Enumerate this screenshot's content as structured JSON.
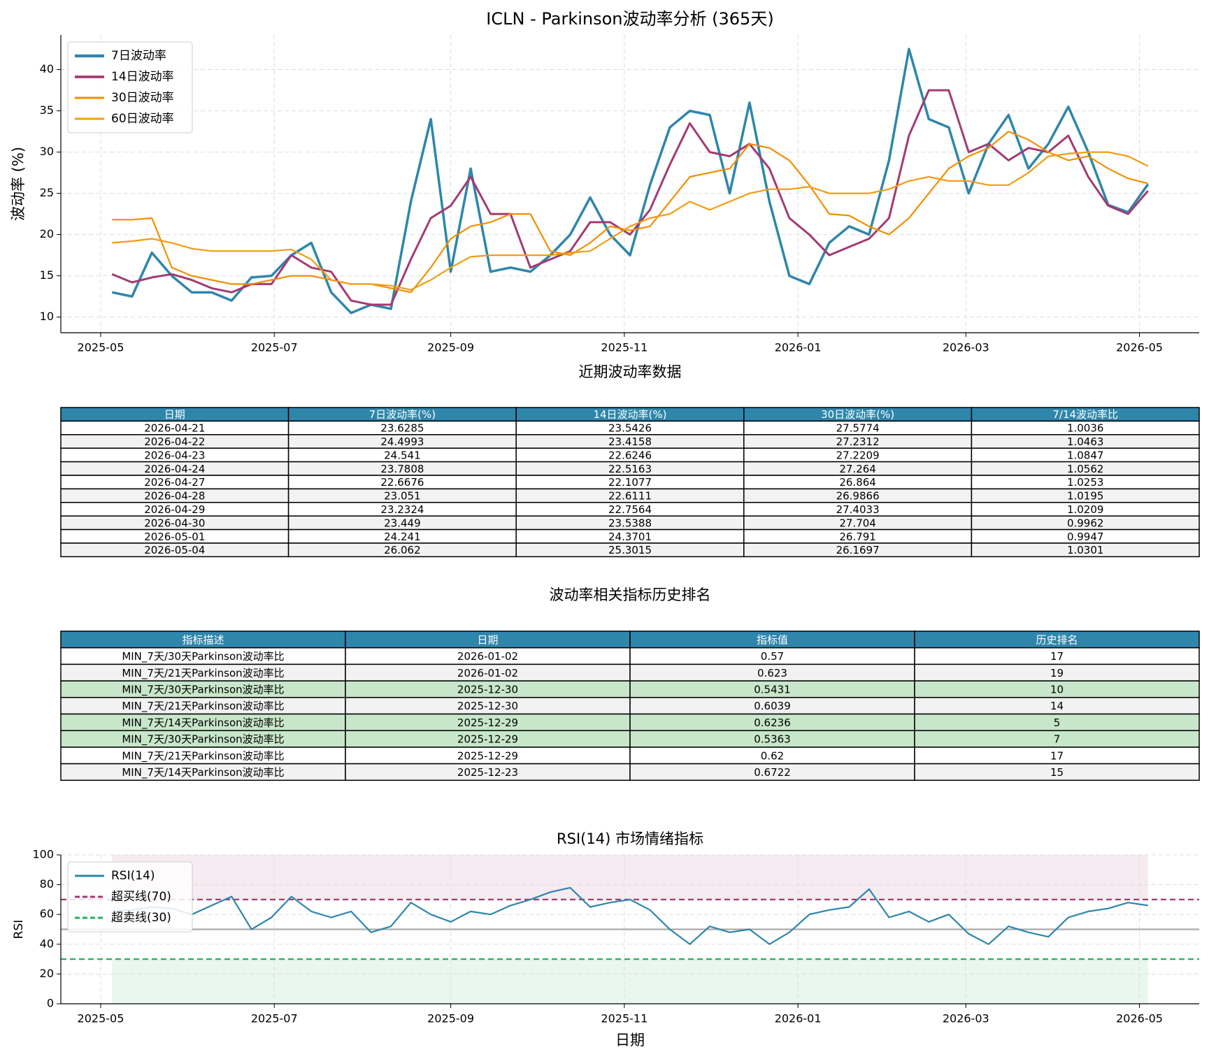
{
  "chart_data": [
    {
      "type": "line",
      "title": "ICLN - Parkinson波动率分析 (365天)",
      "ylabel": "波动率 (%)",
      "grid": true,
      "legend": "upper left",
      "x": [
        "2025-05-05",
        "2025-05-12",
        "2025-05-19",
        "2025-05-26",
        "2025-06-02",
        "2025-06-09",
        "2025-06-16",
        "2025-06-23",
        "2025-06-30",
        "2025-07-07",
        "2025-07-14",
        "2025-07-21",
        "2025-07-28",
        "2025-08-04",
        "2025-08-11",
        "2025-08-18",
        "2025-08-25",
        "2025-09-01",
        "2025-09-08",
        "2025-09-15",
        "2025-09-22",
        "2025-09-29",
        "2025-10-06",
        "2025-10-13",
        "2025-10-20",
        "2025-10-27",
        "2025-11-03",
        "2025-11-10",
        "2025-11-17",
        "2025-11-24",
        "2025-12-01",
        "2025-12-08",
        "2025-12-15",
        "2025-12-22",
        "2025-12-29",
        "2026-01-05",
        "2026-01-12",
        "2026-01-19",
        "2026-01-26",
        "2026-02-02",
        "2026-02-09",
        "2026-02-16",
        "2026-02-23",
        "2026-03-02",
        "2026-03-09",
        "2026-03-16",
        "2026-03-23",
        "2026-03-30",
        "2026-04-06",
        "2026-04-13",
        "2026-04-20",
        "2026-04-27",
        "2026-05-04"
      ],
      "series": [
        {
          "name": "7日波动率",
          "color": "#2e86ab",
          "linewidth": 3.5,
          "values": [
            13,
            12.5,
            17.8,
            15,
            13,
            13,
            12,
            14.8,
            15,
            17.5,
            19,
            13,
            10.5,
            11.5,
            11,
            24,
            34,
            15.5,
            28,
            15.5,
            16,
            15.5,
            17.5,
            20,
            24.5,
            20,
            17.5,
            26,
            33,
            35,
            34.5,
            25,
            36,
            24,
            15,
            14,
            19,
            21,
            20,
            29,
            42.5,
            34,
            33,
            25,
            31,
            34.5,
            28,
            31,
            35.5,
            30,
            23.6,
            22.7,
            26.1
          ]
        },
        {
          "name": "14日波动率",
          "color": "#a23b72",
          "linewidth": 3,
          "values": [
            15.2,
            14.2,
            14.8,
            15.2,
            14.5,
            13.5,
            13,
            14,
            14,
            17.5,
            16,
            15.5,
            12,
            11.5,
            11.5,
            17,
            22,
            23.5,
            27,
            22.5,
            22.5,
            16,
            17,
            18,
            21.5,
            21.5,
            20,
            23,
            28.5,
            33.5,
            30,
            29.5,
            31,
            28,
            22,
            20,
            17.5,
            18.5,
            19.5,
            22,
            32,
            37.5,
            37.5,
            30,
            31,
            29,
            30.5,
            30,
            32,
            27,
            23.5,
            22.5,
            25.3
          ]
        },
        {
          "name": "30日波动率",
          "color": "#f18f01",
          "linewidth": 2.2,
          "values": [
            21.8,
            21.8,
            22,
            16,
            15,
            14.5,
            14,
            14,
            14.5,
            15,
            15,
            14.5,
            14,
            14,
            13.5,
            13,
            16,
            19.5,
            21,
            21.5,
            22.5,
            22.5,
            18,
            17.5,
            19,
            21,
            20.5,
            21,
            24,
            27,
            27.5,
            28,
            31,
            30.5,
            29,
            26,
            22.5,
            22.3,
            21,
            20,
            22,
            25,
            28,
            29.5,
            30.5,
            32.5,
            31.5,
            30,
            29,
            29.5,
            28,
            26.8,
            26.2
          ]
        },
        {
          "name": "60日波动率",
          "color": "#f39c12",
          "linewidth": 2.2,
          "values": [
            19,
            19.2,
            19.5,
            19,
            18.3,
            18,
            18,
            18,
            18,
            18.2,
            17,
            14.5,
            14,
            14,
            13.8,
            13.3,
            14.5,
            16,
            17.3,
            17.5,
            17.5,
            17.5,
            17.5,
            17.8,
            18,
            19.5,
            21,
            22,
            22.5,
            24,
            23,
            24,
            25,
            25.5,
            25.5,
            25.8,
            25,
            25,
            25,
            25.5,
            26.5,
            27,
            26.5,
            26.5,
            26,
            26,
            27.5,
            29.5,
            29.8,
            30,
            30,
            29.5,
            28.3
          ]
        }
      ],
      "xlim": [
        "2025-04-17",
        "2026-05-22"
      ],
      "xticks": [
        "2025-05",
        "2025-07",
        "2025-09",
        "2025-11",
        "2026-01",
        "2026-03",
        "2026-05"
      ],
      "ylim": [
        8.1,
        44.2
      ],
      "yticks": [
        10,
        15,
        20,
        25,
        30,
        35,
        40
      ]
    },
    {
      "type": "line",
      "title": "RSI(14) 市场情绪指标",
      "ylabel": "RSI",
      "xlabel": "日期",
      "grid": true,
      "legend": "upper left",
      "x": [
        "2025-05-05",
        "2025-05-12",
        "2025-05-19",
        "2025-05-26",
        "2025-06-02",
        "2025-06-09",
        "2025-06-16",
        "2025-06-23",
        "2025-06-30",
        "2025-07-07",
        "2025-07-14",
        "2025-07-21",
        "2025-07-28",
        "2025-08-04",
        "2025-08-11",
        "2025-08-18",
        "2025-08-25",
        "2025-09-01",
        "2025-09-08",
        "2025-09-15",
        "2025-09-22",
        "2025-09-29",
        "2025-10-06",
        "2025-10-13",
        "2025-10-20",
        "2025-10-27",
        "2025-11-03",
        "2025-11-10",
        "2025-11-17",
        "2025-11-24",
        "2025-12-01",
        "2025-12-08",
        "2025-12-15",
        "2025-12-22",
        "2025-12-29",
        "2026-01-05",
        "2026-01-12",
        "2026-01-19",
        "2026-01-26",
        "2026-02-02",
        "2026-02-09",
        "2026-02-16",
        "2026-02-23",
        "2026-03-02",
        "2026-03-09",
        "2026-03-16",
        "2026-03-23",
        "2026-03-30",
        "2026-04-06",
        "2026-04-13",
        "2026-04-20",
        "2026-04-27",
        "2026-05-04"
      ],
      "series": [
        {
          "name": "RSI(14)",
          "color": "#2e86ab",
          "linewidth": 2.2,
          "values": [
            62,
            63,
            65,
            64,
            60,
            66,
            72,
            50,
            58,
            72,
            62,
            58,
            62,
            48,
            52,
            68,
            60,
            55,
            62,
            60,
            66,
            70,
            75,
            78,
            65,
            68,
            70,
            63,
            50,
            40,
            52,
            48,
            50,
            40,
            48,
            60,
            63,
            65,
            77,
            58,
            62,
            55,
            60,
            47,
            40,
            52,
            48,
            45,
            58,
            62,
            64,
            68,
            66
          ]
        }
      ],
      "hlines": [
        {
          "name": "超买线(70)",
          "value": 70,
          "color": "#a23b72",
          "style": "dashed"
        },
        {
          "name": "超卖线(30)",
          "value": 30,
          "color": "#27ae60",
          "style": "dashed"
        },
        {
          "value": 50,
          "color": "#aaaaaa",
          "style": "solid"
        }
      ],
      "bands": [
        {
          "from": 70,
          "to": 100,
          "color": "#a23b72"
        },
        {
          "from": 0,
          "to": 30,
          "color": "#27ae60"
        }
      ],
      "xlim": [
        "2025-04-17",
        "2026-05-22"
      ],
      "xticks": [
        "2025-05",
        "2025-07",
        "2025-09",
        "2025-11",
        "2026-01",
        "2026-03",
        "2026-05"
      ],
      "ylim": [
        0,
        100
      ],
      "yticks": [
        0,
        20,
        40,
        60,
        80,
        100
      ]
    }
  ],
  "tables": [
    {
      "title": "近期波动率数据",
      "header_color": "#2e86ab",
      "columns": [
        "日期",
        "7日波动率(%)",
        "14日波动率(%)",
        "30日波动率(%)",
        "7/14波动率比"
      ],
      "rows": [
        [
          "2026-04-21",
          "23.6285",
          "23.5426",
          "27.5774",
          "1.0036"
        ],
        [
          "2026-04-22",
          "24.4993",
          "23.4158",
          "27.2312",
          "1.0463"
        ],
        [
          "2026-04-23",
          "24.541",
          "22.6246",
          "27.2209",
          "1.0847"
        ],
        [
          "2026-04-24",
          "23.7808",
          "22.5163",
          "27.264",
          "1.0562"
        ],
        [
          "2026-04-27",
          "22.6676",
          "22.1077",
          "26.864",
          "1.0253"
        ],
        [
          "2026-04-28",
          "23.051",
          "22.6111",
          "26.9866",
          "1.0195"
        ],
        [
          "2026-04-29",
          "23.2324",
          "22.7564",
          "27.4033",
          "1.0209"
        ],
        [
          "2026-04-30",
          "23.449",
          "23.5388",
          "27.704",
          "0.9962"
        ],
        [
          "2026-05-01",
          "24.241",
          "24.3701",
          "26.791",
          "0.9947"
        ],
        [
          "2026-05-04",
          "26.062",
          "25.3015",
          "26.1697",
          "1.0301"
        ]
      ],
      "highlight_rows": []
    },
    {
      "title": "波动率相关指标历史排名",
      "header_color": "#2e86ab",
      "columns": [
        "指标描述",
        "日期",
        "指标值",
        "历史排名"
      ],
      "rows": [
        [
          "MIN_7天/30天Parkinson波动率比",
          "2026-01-02",
          "0.57",
          "17"
        ],
        [
          "MIN_7天/21天Parkinson波动率比",
          "2026-01-02",
          "0.623",
          "19"
        ],
        [
          "MIN_7天/30天Parkinson波动率比",
          "2025-12-30",
          "0.5431",
          "10"
        ],
        [
          "MIN_7天/21天Parkinson波动率比",
          "2025-12-30",
          "0.6039",
          "14"
        ],
        [
          "MIN_7天/14天Parkinson波动率比",
          "2025-12-29",
          "0.6236",
          "5"
        ],
        [
          "MIN_7天/30天Parkinson波动率比",
          "2025-12-29",
          "0.5363",
          "7"
        ],
        [
          "MIN_7天/21天Parkinson波动率比",
          "2025-12-29",
          "0.62",
          "17"
        ],
        [
          "MIN_7天/14天Parkinson波动率比",
          "2025-12-23",
          "0.6722",
          "15"
        ]
      ],
      "highlight_rows": [
        2,
        4,
        5
      ]
    }
  ]
}
